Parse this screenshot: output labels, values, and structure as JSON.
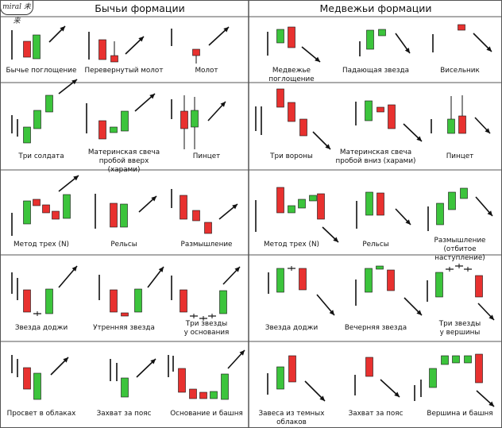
{
  "logo_text": "miral 未来",
  "headers": {
    "bullish": "Бычьи формации",
    "bearish": "Медвежьи формации"
  },
  "colors": {
    "bull": "#3cc43c",
    "bear": "#e8312f",
    "stroke": "#111111"
  },
  "bullish": [
    {
      "label": "Бычье поглощение"
    },
    {
      "label": "Перевернутый молот"
    },
    {
      "label": "Молот"
    },
    {
      "label": "Три солдата"
    },
    {
      "label": "Материнская свеча\nпробой вверх (харами)"
    },
    {
      "label": "Пинцет"
    },
    {
      "label": "Метод трех (N)"
    },
    {
      "label": "Рельсы"
    },
    {
      "label": "Размышление"
    },
    {
      "label": "Звезда доджи"
    },
    {
      "label": "Утренняя звезда"
    },
    {
      "label": "Три звезды\nу основания"
    },
    {
      "label": "Просвет в облаках"
    },
    {
      "label": "Захват за пояс"
    },
    {
      "label": "Основание и башня"
    }
  ],
  "bearish": [
    {
      "label": "Медвежье поглощение"
    },
    {
      "label": "Падающая звезда"
    },
    {
      "label": "Висельник"
    },
    {
      "label": "Три вороны"
    },
    {
      "label": "Материнская свеча\nпробой вниз (харами)"
    },
    {
      "label": "Пинцет"
    },
    {
      "label": "Метод трех (N)"
    },
    {
      "label": "Рельсы"
    },
    {
      "label": "Размышление\n(отбитое наступление)"
    },
    {
      "label": "Звезда доджи"
    },
    {
      "label": "Вечерняя звезда"
    },
    {
      "label": "Три звезды\nу вершины"
    },
    {
      "label": "Завеса из темных облаков"
    },
    {
      "label": "Захват за пояс"
    },
    {
      "label": "Вершина и башня"
    }
  ]
}
